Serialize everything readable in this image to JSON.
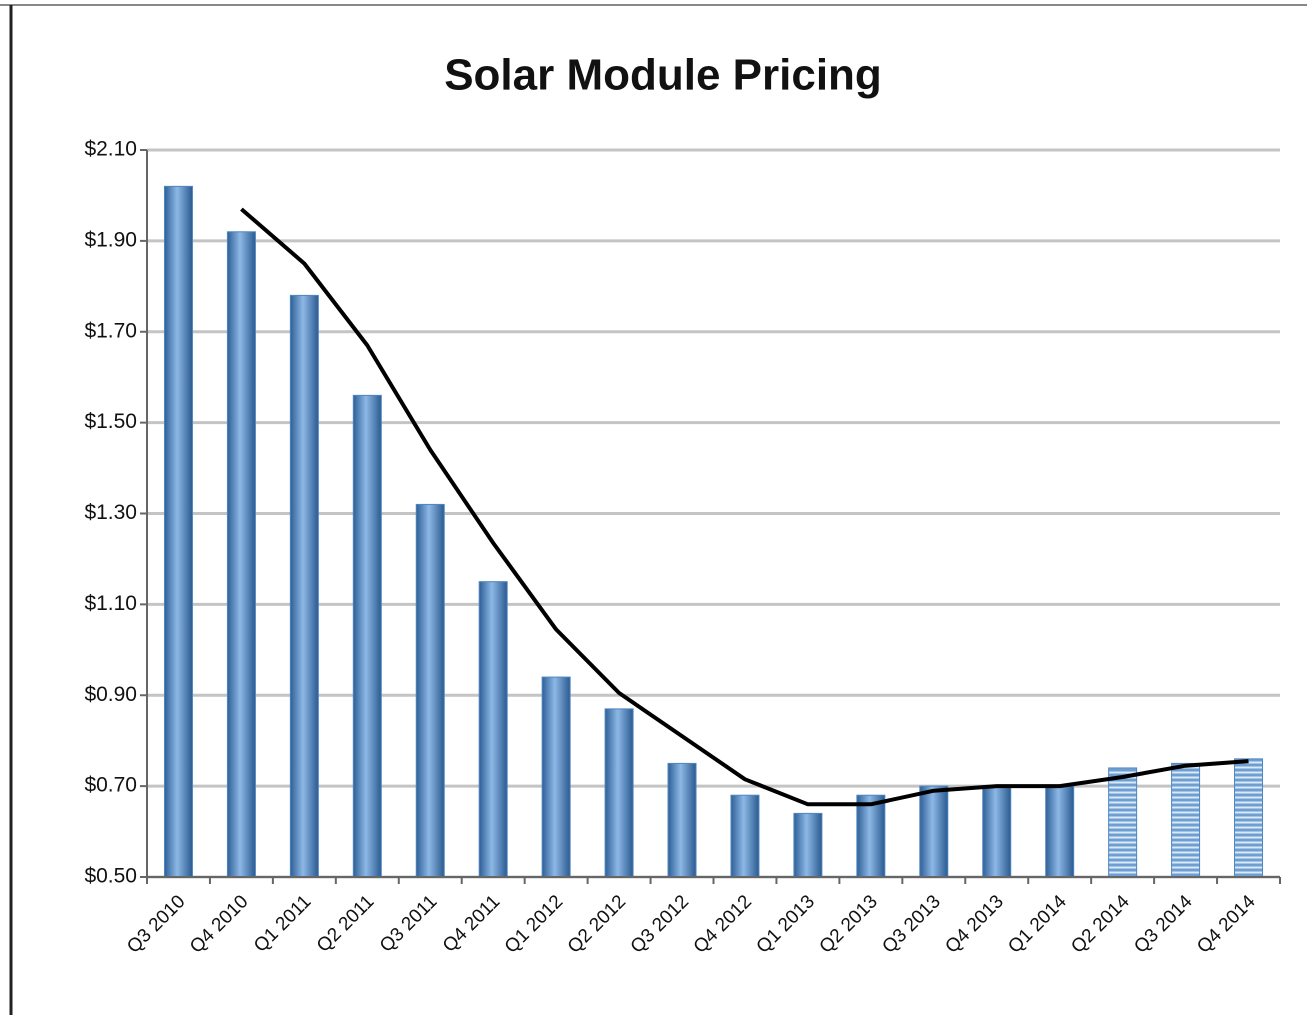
{
  "chart_data": {
    "type": "bar",
    "title": "Solar Module Pricing",
    "categories": [
      "Q3 2010",
      "Q4 2010",
      "Q1 2011",
      "Q2 2011",
      "Q3 2011",
      "Q4 2011",
      "Q1 2012",
      "Q2 2012",
      "Q3 2012",
      "Q4 2012",
      "Q1 2013",
      "Q2 2013",
      "Q3 2013",
      "Q4 2013",
      "Q1 2014",
      "Q2 2014",
      "Q3 2014",
      "Q4 2014"
    ],
    "values": [
      2.02,
      1.92,
      1.78,
      1.56,
      1.32,
      1.15,
      0.94,
      0.87,
      0.75,
      0.68,
      0.64,
      0.68,
      0.7,
      0.7,
      0.7,
      0.74,
      0.75,
      0.76
    ],
    "bar_styles": [
      "solid",
      "solid",
      "solid",
      "solid",
      "solid",
      "solid",
      "solid",
      "solid",
      "solid",
      "solid",
      "solid",
      "solid",
      "solid",
      "solid",
      "solid",
      "striped",
      "striped",
      "striped"
    ],
    "color": "#4f86c0",
    "trendline": {
      "color": "#000000",
      "values": [
        null,
        1.97,
        1.85,
        1.67,
        1.44,
        1.235,
        1.045,
        0.905,
        0.81,
        0.715,
        0.66,
        0.66,
        0.69,
        0.7,
        0.7,
        0.72,
        0.745,
        0.755
      ]
    },
    "ylim": [
      0.5,
      2.1
    ],
    "yticks": [
      {
        "value": 0.5,
        "label": "$0.50"
      },
      {
        "value": 0.7,
        "label": "$0.70"
      },
      {
        "value": 0.9,
        "label": "$0.90"
      },
      {
        "value": 1.1,
        "label": "$1.10"
      },
      {
        "value": 1.3,
        "label": "$1.30"
      },
      {
        "value": 1.5,
        "label": "$1.50"
      },
      {
        "value": 1.7,
        "label": "$1.70"
      },
      {
        "value": 1.9,
        "label": "$1.90"
      },
      {
        "value": 2.1,
        "label": "$2.10"
      }
    ],
    "grid": true
  }
}
